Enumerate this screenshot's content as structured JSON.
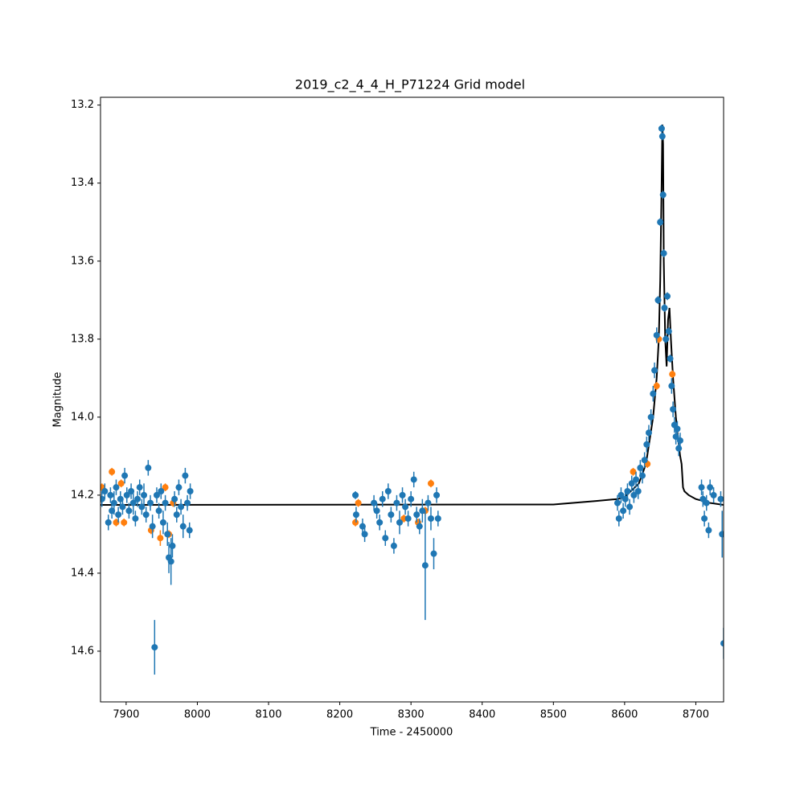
{
  "chart_data": {
    "type": "scatter",
    "title": "2019_c2_4_4_H_P71224 Grid model",
    "x_label": "Time - 2450000",
    "y_label": "Magnitude",
    "xlim": [
      7864,
      8739
    ],
    "xticks": [
      7900,
      8000,
      8100,
      8200,
      8300,
      8400,
      8500,
      8600,
      8700
    ],
    "ylim": [
      14.73,
      13.18
    ],
    "yticks": [
      13.2,
      13.4,
      13.6,
      13.8,
      {
        "value": 14,
        "label": "14.0"
      },
      14.2,
      14.4,
      14.6
    ],
    "series": [
      {
        "type": "errorbar",
        "color": "#1f77b4",
        "x": [
          7866,
          7870,
          7875,
          7878,
          7880,
          7883,
          7886,
          7889,
          7892,
          7895,
          7898,
          7901,
          7904,
          7907,
          7910,
          7913,
          7916,
          7919,
          7922,
          7925,
          7928,
          7931,
          7934,
          7937,
          7940,
          7943,
          7946,
          7949,
          7952,
          7955,
          7958,
          7960,
          7963,
          7965,
          7968,
          7971,
          7974,
          7977,
          7980,
          7983,
          7986,
          7989,
          7990,
          8222,
          8223,
          8232,
          8235,
          8248,
          8252,
          8256,
          8260,
          8264,
          8268,
          8272,
          8276,
          8280,
          8284,
          8288,
          8292,
          8296,
          8300,
          8304,
          8308,
          8312,
          8316,
          8320,
          8324,
          8328,
          8332,
          8336,
          8338,
          8590,
          8592,
          8595,
          8598,
          8601,
          8604,
          8607,
          8610,
          8613,
          8616,
          8619,
          8622,
          8625,
          8628,
          8631,
          8634,
          8637,
          8640,
          8642,
          8645,
          8647,
          8650,
          8652,
          8653,
          8654,
          8655,
          8656,
          8658,
          8660,
          8662,
          8664,
          8666,
          8668,
          8670,
          8672,
          8674,
          8676,
          8678,
          8708,
          8710,
          8712,
          8715,
          8718,
          8720,
          8725,
          8735,
          8737,
          8739
        ],
        "values": [
          14.21,
          14.19,
          14.27,
          14.2,
          14.24,
          14.22,
          14.18,
          14.25,
          14.21,
          14.23,
          14.15,
          14.2,
          14.24,
          14.19,
          14.22,
          14.26,
          14.21,
          14.18,
          14.23,
          14.2,
          14.25,
          14.13,
          14.22,
          14.28,
          14.59,
          14.2,
          14.24,
          14.19,
          14.27,
          14.22,
          14.3,
          14.36,
          14.37,
          14.33,
          14.21,
          14.25,
          14.18,
          14.23,
          14.28,
          14.15,
          14.22,
          14.29,
          14.19,
          14.2,
          14.25,
          14.28,
          14.3,
          14.22,
          14.24,
          14.27,
          14.21,
          14.31,
          14.19,
          14.25,
          14.33,
          14.22,
          14.27,
          14.2,
          14.23,
          14.26,
          14.21,
          14.16,
          14.25,
          14.28,
          14.24,
          14.38,
          14.22,
          14.26,
          14.35,
          14.2,
          14.26,
          14.22,
          14.26,
          14.2,
          14.24,
          14.21,
          14.19,
          14.23,
          14.17,
          14.2,
          14.16,
          14.19,
          14.13,
          14.15,
          14.11,
          14.07,
          14.04,
          14.0,
          13.94,
          13.88,
          13.79,
          13.7,
          13.5,
          13.26,
          13.28,
          13.43,
          13.58,
          13.72,
          13.8,
          13.69,
          13.78,
          13.85,
          13.92,
          13.98,
          14.02,
          14.05,
          14.03,
          14.08,
          14.06,
          14.18,
          14.21,
          14.26,
          14.22,
          14.29,
          14.18,
          14.2,
          14.21,
          14.3,
          14.58
        ],
        "errors": [
          0.02,
          0.02,
          0.02,
          0.02,
          0.02,
          0.03,
          0.02,
          0.02,
          0.02,
          0.02,
          0.02,
          0.02,
          0.02,
          0.02,
          0.03,
          0.02,
          0.02,
          0.02,
          0.02,
          0.03,
          0.02,
          0.02,
          0.02,
          0.03,
          0.07,
          0.02,
          0.02,
          0.02,
          0.03,
          0.02,
          0.03,
          0.04,
          0.06,
          0.03,
          0.02,
          0.02,
          0.02,
          0.02,
          0.03,
          0.02,
          0.02,
          0.02,
          0.02,
          0.01,
          0.02,
          0.02,
          0.02,
          0.02,
          0.02,
          0.02,
          0.02,
          0.02,
          0.02,
          0.02,
          0.02,
          0.02,
          0.03,
          0.02,
          0.02,
          0.02,
          0.02,
          0.02,
          0.02,
          0.02,
          0.03,
          0.14,
          0.02,
          0.03,
          0.04,
          0.02,
          0.02,
          0.02,
          0.02,
          0.02,
          0.02,
          0.02,
          0.02,
          0.02,
          0.02,
          0.02,
          0.02,
          0.02,
          0.02,
          0.02,
          0.02,
          0.02,
          0.02,
          0.02,
          0.02,
          0.02,
          0.02,
          0.01,
          0.01,
          0.01,
          0.01,
          0.01,
          0.01,
          0.01,
          0.01,
          0.01,
          0.01,
          0.01,
          0.02,
          0.02,
          0.02,
          0.02,
          0.02,
          0.02,
          0.02,
          0.02,
          0.02,
          0.02,
          0.02,
          0.02,
          0.02,
          0.02,
          0.02,
          0.06,
          0.04
        ]
      },
      {
        "type": "errorbar",
        "color": "#ff7f0e",
        "x": [
          7866,
          7880,
          7886,
          7893,
          7897,
          7935,
          7948,
          7955,
          7960,
          7966,
          8222,
          8226,
          8290,
          8310,
          8328,
          8320,
          8612,
          8632,
          8645,
          8648,
          8667
        ],
        "values": [
          14.18,
          14.14,
          14.27,
          14.17,
          14.27,
          14.29,
          14.31,
          14.18,
          14.3,
          14.22,
          14.27,
          14.22,
          14.26,
          14.27,
          14.17,
          14.24,
          14.14,
          14.12,
          13.92,
          13.8,
          13.89
        ],
        "errors": [
          0.01,
          0.01,
          0.01,
          0.01,
          0.01,
          0.01,
          0.02,
          0.01,
          0.01,
          0.01,
          0.01,
          0.01,
          0.01,
          0.01,
          0.01,
          0.01,
          0.01,
          0.01,
          0.01,
          0.01,
          0.01
        ]
      },
      {
        "type": "line",
        "color": "#000000",
        "x": [
          7864,
          8500,
          8560,
          8590,
          8600,
          8620,
          8630,
          8640,
          8645,
          8648,
          8650,
          8652,
          8653,
          8654,
          8655,
          8657,
          8659,
          8661,
          8663,
          8665,
          8668,
          8672,
          8676,
          8678,
          8680,
          8682,
          8684,
          8690,
          8700,
          8720,
          8739
        ],
        "values": [
          14.225,
          14.224,
          14.215,
          14.21,
          14.205,
          14.17,
          14.12,
          14.0,
          13.9,
          13.8,
          13.65,
          13.4,
          13.25,
          13.3,
          13.6,
          13.8,
          13.87,
          13.75,
          13.72,
          13.8,
          13.9,
          14.0,
          14.07,
          14.1,
          14.12,
          14.18,
          14.19,
          14.2,
          14.21,
          14.22,
          14.225
        ]
      }
    ]
  }
}
